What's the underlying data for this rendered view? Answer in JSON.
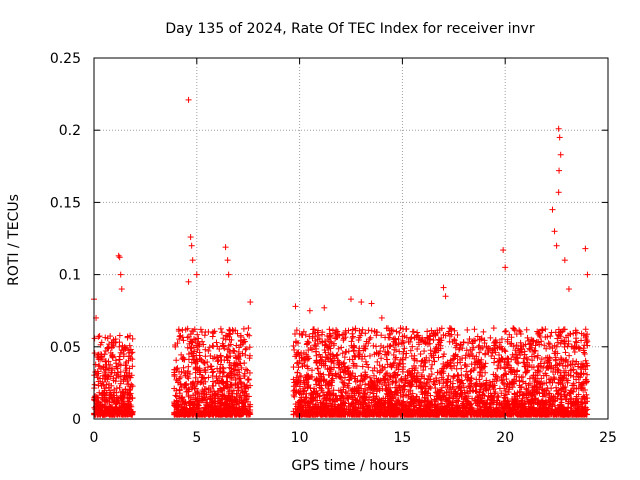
{
  "chart_data": {
    "type": "scatter",
    "title": "Day 135 of 2024, Rate Of TEC Index for receiver invr",
    "xlabel": "GPS time / hours",
    "ylabel": "ROTI / TECUs",
    "xlim": [
      0,
      25
    ],
    "ylim": [
      0,
      0.25
    ],
    "xticks": [
      0,
      5,
      10,
      15,
      20,
      25
    ],
    "yticks": [
      0,
      0.05,
      0.1,
      0.15,
      0.2,
      0.25
    ],
    "xtick_labels": [
      "0",
      "5",
      "10",
      "15",
      "20",
      "25"
    ],
    "ytick_labels": [
      "0",
      "0.05",
      "0.1",
      "0.15",
      "0.2",
      "0.25"
    ],
    "grid": true,
    "marker": "+",
    "marker_color": "#ff0000",
    "coverage_note": "Dense point cloud; data present in hours 0-2, 4-7.5 and 9.7-24 with values mostly 0.005-0.06 TECUs",
    "data_segments": [
      {
        "x_start": 0.0,
        "x_end": 1.9,
        "typical_max": 0.055
      },
      {
        "x_start": 3.9,
        "x_end": 7.6,
        "typical_max": 0.06
      },
      {
        "x_start": 9.7,
        "x_end": 24.0,
        "typical_max": 0.06
      }
    ],
    "notable_points": [
      {
        "x": 0.0,
        "y": 0.083
      },
      {
        "x": 0.1,
        "y": 0.07
      },
      {
        "x": 1.2,
        "y": 0.113
      },
      {
        "x": 1.25,
        "y": 0.112
      },
      {
        "x": 1.3,
        "y": 0.1
      },
      {
        "x": 1.35,
        "y": 0.09
      },
      {
        "x": 4.6,
        "y": 0.221
      },
      {
        "x": 4.7,
        "y": 0.126
      },
      {
        "x": 4.75,
        "y": 0.12
      },
      {
        "x": 4.8,
        "y": 0.11
      },
      {
        "x": 4.6,
        "y": 0.095
      },
      {
        "x": 5.0,
        "y": 0.1
      },
      {
        "x": 6.4,
        "y": 0.119
      },
      {
        "x": 6.5,
        "y": 0.11
      },
      {
        "x": 6.55,
        "y": 0.1
      },
      {
        "x": 7.6,
        "y": 0.081
      },
      {
        "x": 9.8,
        "y": 0.078
      },
      {
        "x": 10.5,
        "y": 0.075
      },
      {
        "x": 11.2,
        "y": 0.077
      },
      {
        "x": 12.5,
        "y": 0.083
      },
      {
        "x": 13.0,
        "y": 0.081
      },
      {
        "x": 13.5,
        "y": 0.08
      },
      {
        "x": 14.0,
        "y": 0.07
      },
      {
        "x": 17.0,
        "y": 0.091
      },
      {
        "x": 17.1,
        "y": 0.085
      },
      {
        "x": 19.9,
        "y": 0.117
      },
      {
        "x": 20.0,
        "y": 0.105
      },
      {
        "x": 22.3,
        "y": 0.145
      },
      {
        "x": 22.4,
        "y": 0.13
      },
      {
        "x": 22.5,
        "y": 0.12
      },
      {
        "x": 22.6,
        "y": 0.201
      },
      {
        "x": 22.65,
        "y": 0.195
      },
      {
        "x": 22.7,
        "y": 0.183
      },
      {
        "x": 22.62,
        "y": 0.172
      },
      {
        "x": 22.6,
        "y": 0.157
      },
      {
        "x": 22.9,
        "y": 0.11
      },
      {
        "x": 23.1,
        "y": 0.09
      },
      {
        "x": 23.9,
        "y": 0.118
      },
      {
        "x": 24.0,
        "y": 0.1
      }
    ]
  }
}
